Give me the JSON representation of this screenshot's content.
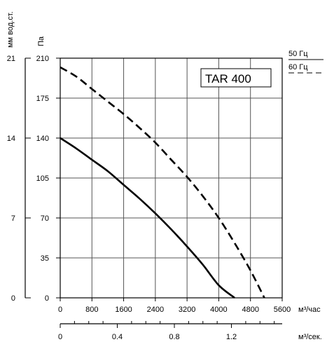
{
  "chart_data": {
    "type": "line",
    "title": "TAR 400",
    "grid": true,
    "legend_position": "top-right",
    "axes": {
      "y_left_outer": {
        "label": "мм вод.ст.",
        "ticks": [
          "0",
          "7",
          "14",
          "21"
        ],
        "range": [
          0,
          21
        ]
      },
      "y_left_inner": {
        "label": "Па",
        "ticks": [
          "0",
          "35",
          "70",
          "105",
          "140",
          "175",
          "210"
        ],
        "range": [
          0,
          210
        ]
      },
      "x_primary": {
        "label": "м³/час",
        "ticks": [
          "0",
          "800",
          "1600",
          "2400",
          "3200",
          "4000",
          "4800",
          "5600"
        ],
        "range": [
          0,
          5600
        ]
      },
      "x_secondary": {
        "label": "м³/сек.",
        "ticks": [
          "0",
          "0.4",
          "0.8",
          "1.2"
        ],
        "range": [
          0,
          1.5556
        ]
      }
    },
    "series": [
      {
        "name": "50 Гц",
        "style": "solid",
        "x": [
          0,
          400,
          800,
          1200,
          1600,
          2000,
          2400,
          2800,
          3200,
          3600,
          4000,
          4400
        ],
        "y": [
          140,
          131,
          121,
          111,
          99,
          87,
          74,
          60,
          45,
          29,
          11,
          0
        ]
      },
      {
        "name": "60 Гц",
        "style": "dashed",
        "x": [
          0,
          400,
          800,
          1200,
          1600,
          2000,
          2400,
          2800,
          3200,
          3600,
          4000,
          4400,
          4800,
          5150
        ],
        "y": [
          202,
          194,
          183,
          172,
          161,
          149,
          136,
          121,
          106,
          89,
          70,
          48,
          24,
          0
        ]
      }
    ]
  },
  "colors": {
    "line": "#000000",
    "grid": "#555555",
    "background": "#ffffff"
  }
}
